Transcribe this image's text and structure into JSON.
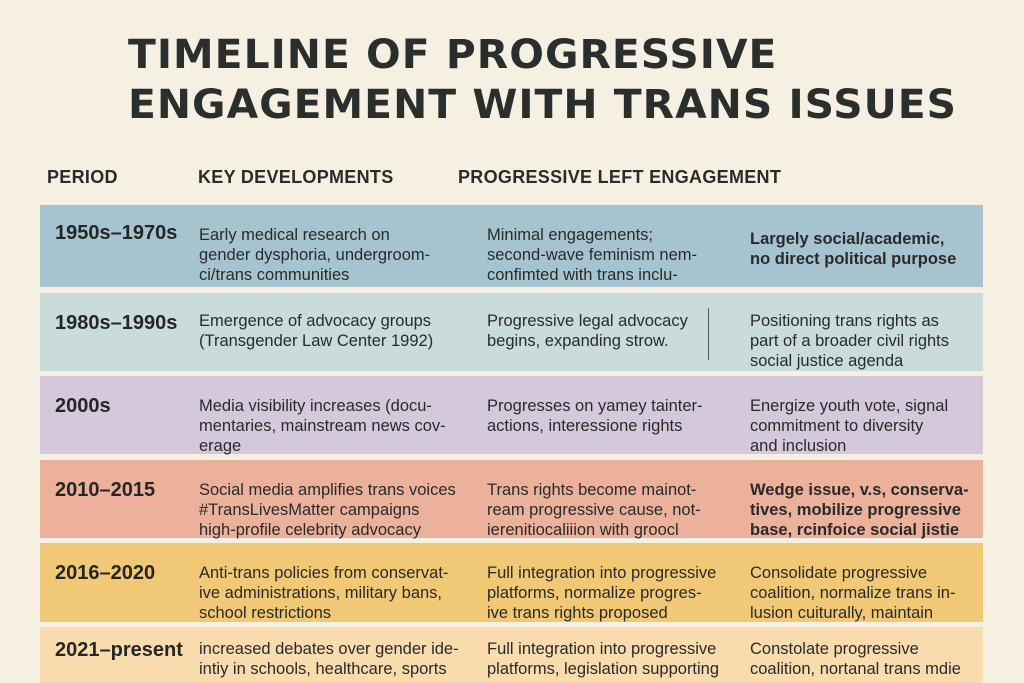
{
  "title": "TIMELINE OF PROGRESSIVE\nENGAGEMENT WITH TRANS ISSUES",
  "headers": {
    "period": "PERIOD",
    "developments": "KEY DEVELOPMENTS",
    "engagement": "PROGRESSIVE LEFT ENGAGEMENT"
  },
  "rows": [
    {
      "period": "1950s–1970s",
      "developments": "Early medical research on\ngender dysphoria, undergroom-\nci/trans communities",
      "engagement": "Minimal engagements;\nsecond-wave feminism nem-\nconfimted with trans inclu-",
      "purpose": "Largely social/academic,\nno direct political purpose",
      "color": "#a6c4cf"
    },
    {
      "period": "1980s–1990s",
      "developments": "Emergence of advocacy groups\n(Transgender Law Center 1992)",
      "engagement": "Progressive legal advocacy\nbegins, expanding strow.",
      "purpose": "Positioning trans rights as\npart of a broader civil rights\nsocial justice agenda",
      "color": "#c9dbdb"
    },
    {
      "period": "2000s",
      "developments": "Media visibility increases (docu-\nmentaries, mainstream news cov-\nerage",
      "engagement": "Progresses on yamey tainter-\nactions, interessione rights",
      "purpose": "Energize youth vote, signal\ncommitment to diversity\nand inclusion",
      "color": "#d4c8dc"
    },
    {
      "period": "2010–2015",
      "developments": "Social media amplifies trans voices\n#TransLivesMatter campaigns\nhigh-profile celebrity advocacy",
      "engagement": "Trans rights become mainot-\nream progressive cause, not-\nierenitiocaliiion with groocl",
      "purpose": "Wedge issue, v.s, conserva-\ntives, mobilize progressive\nbase, rcinfoice social jistie",
      "color": "#ebb19b"
    },
    {
      "period": "2016–2020",
      "developments": "Anti-trans policies from conservat-\nive administrations, military bans,\nschool restrictions",
      "engagement": "Full integration into progressive\nplatforms, normalize progres-\nive trans rights proposed",
      "purpose": "Consolidate progressive\ncoalition, normalize trans in-\nlusion cuiturally, maintain",
      "color": "#f1c876"
    },
    {
      "period": "2021–present",
      "developments": "increased debates over gender ide-\nintiy in schools, healthcare, sports",
      "engagement": "Full integration into progressive\nplatforms, legislation supporting",
      "purpose": "Constolate progressive\ncoalition, nortanal trans mdie",
      "color": "#f8dcae"
    }
  ]
}
